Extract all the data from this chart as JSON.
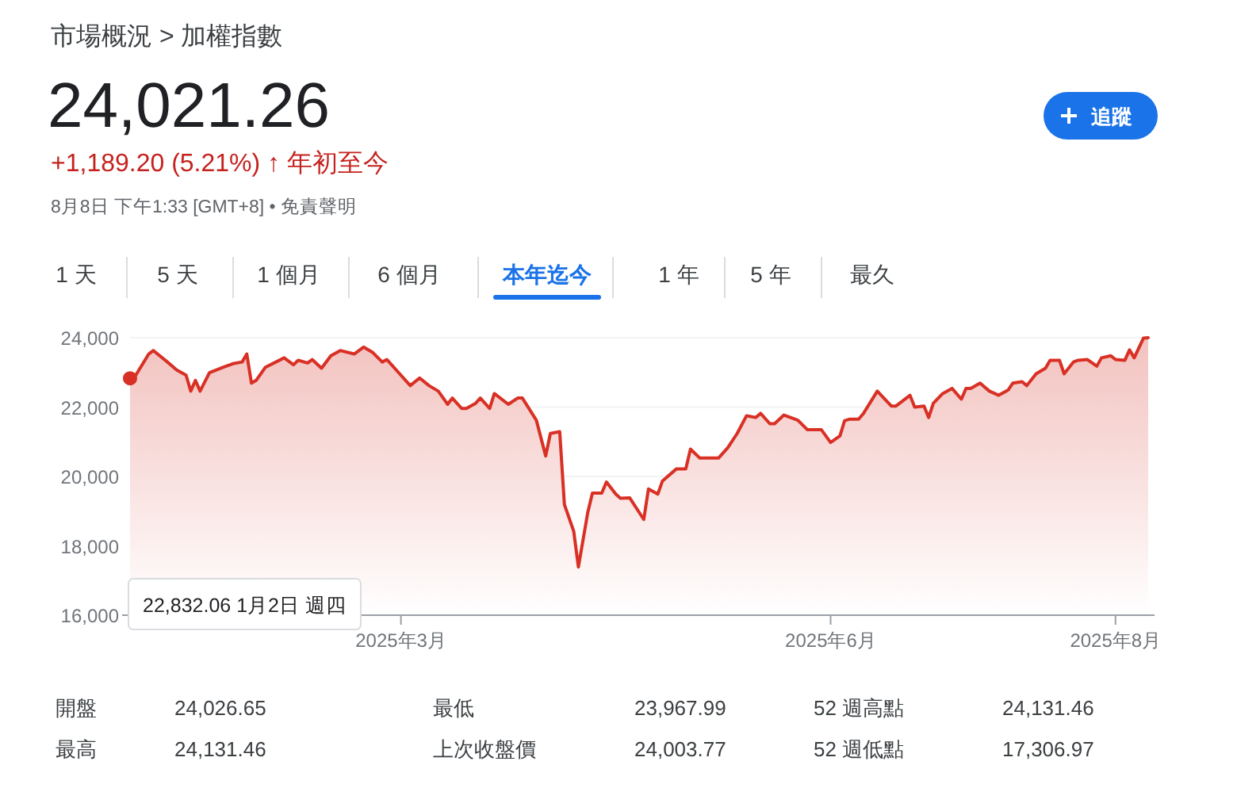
{
  "chart_data": {
    "type": "area",
    "title": "市場概況 > 加權指數",
    "subtitle": "24,021.26",
    "annotations": [
      "+1,189.20 (5.21%) ↑ 年初至今",
      "8月8日 下午1:33 [GMT+8] • 免責聲明",
      "追蹤",
      "1 天",
      "5 天",
      "1 個月",
      "6 個月",
      "本年迄今",
      "1 年",
      "5 年",
      "最久",
      "開盤",
      "24,026.65",
      "最低",
      "23,967.99",
      "52 週高點",
      "24,131.46",
      "最高",
      "24,131.46",
      "上次收盤價",
      "24,003.77",
      "52 週低點",
      "17,306.97",
      "22,832.06 1月2日 週四"
    ],
    "x": [
      "2025-01-02",
      "2025-01-03",
      "2025-01-06",
      "2025-01-07",
      "2025-01-10",
      "2025-01-12",
      "2025-01-14",
      "2025-01-15",
      "2025-01-16",
      "2025-01-17",
      "2025-01-19",
      "2025-01-22",
      "2025-01-24",
      "2025-01-26",
      "2025-01-27",
      "2025-01-28",
      "2025-01-29",
      "2025-01-31",
      "2025-02-04",
      "2025-02-06",
      "2025-02-07",
      "2025-02-09",
      "2025-02-10",
      "2025-02-12",
      "2025-02-14",
      "2025-02-16",
      "2025-02-19",
      "2025-02-21",
      "2025-02-23",
      "2025-02-25",
      "2025-02-26",
      "2025-03-01",
      "2025-03-03",
      "2025-03-05",
      "2025-03-07",
      "2025-03-09",
      "2025-03-11",
      "2025-03-12",
      "2025-03-14",
      "2025-03-15",
      "2025-03-17",
      "2025-03-18",
      "2025-03-20",
      "2025-03-21",
      "2025-03-24",
      "2025-03-26",
      "2025-03-27",
      "2025-03-30",
      "2025-04-01",
      "2025-04-02",
      "2025-04-04",
      "2025-04-05",
      "2025-04-07",
      "2025-04-08",
      "2025-04-10",
      "2025-04-11",
      "2025-04-13",
      "2025-04-14",
      "2025-04-16",
      "2025-04-17",
      "2025-04-19",
      "2025-04-22",
      "2025-04-23",
      "2025-04-25",
      "2025-04-26",
      "2025-04-29",
      "2025-05-01",
      "2025-05-02",
      "2025-05-04",
      "2025-05-08",
      "2025-05-10",
      "2025-05-12",
      "2025-05-14",
      "2025-05-16",
      "2025-05-17",
      "2025-05-19",
      "2025-05-20",
      "2025-05-22",
      "2025-05-24",
      "2025-05-25",
      "2025-05-27",
      "2025-05-30",
      "2025-06-01",
      "2025-06-03",
      "2025-06-04",
      "2025-06-05",
      "2025-06-07",
      "2025-06-08",
      "2025-06-11",
      "2025-06-14",
      "2025-06-15",
      "2025-06-18",
      "2025-06-19",
      "2025-06-21",
      "2025-06-22",
      "2025-06-23",
      "2025-06-25",
      "2025-06-27",
      "2025-06-29",
      "2025-06-30",
      "2025-07-01",
      "2025-07-03",
      "2025-07-05",
      "2025-07-07",
      "2025-07-09",
      "2025-07-10",
      "2025-07-12",
      "2025-07-13",
      "2025-07-15",
      "2025-07-17",
      "2025-07-18",
      "2025-07-20",
      "2025-07-21",
      "2025-07-23",
      "2025-07-24",
      "2025-07-26",
      "2025-07-28",
      "2025-07-29",
      "2025-07-31",
      "2025-08-01",
      "2025-08-03",
      "2025-08-04",
      "2025-08-05",
      "2025-08-07",
      "2025-08-08"
    ],
    "series": [
      {
        "color": "#d93025",
        "values": [
          22830,
          22870,
          23530,
          23630,
          23300,
          23070,
          22920,
          22460,
          22770,
          22460,
          22990,
          23150,
          23250,
          23300,
          23530,
          22690,
          22770,
          23150,
          23420,
          23220,
          23350,
          23270,
          23370,
          23120,
          23480,
          23630,
          23530,
          23730,
          23570,
          23300,
          23370,
          22920,
          22620,
          22840,
          22620,
          22460,
          22080,
          22260,
          21960,
          21960,
          22110,
          22260,
          21960,
          22390,
          22080,
          22260,
          22260,
          21620,
          20590,
          21240,
          21290,
          19190,
          18420,
          17390,
          18960,
          19520,
          19520,
          19840,
          19490,
          19370,
          19380,
          18760,
          19640,
          19490,
          19870,
          20220,
          20220,
          20790,
          20530,
          20530,
          20830,
          21240,
          21750,
          21700,
          21820,
          21520,
          21520,
          21770,
          21670,
          21620,
          21350,
          21350,
          20980,
          21170,
          21610,
          21650,
          21650,
          21810,
          22460,
          22030,
          22030,
          22340,
          22000,
          22030,
          21700,
          22110,
          22390,
          22540,
          22230,
          22540,
          22540,
          22690,
          22460,
          22340,
          22490,
          22690,
          22730,
          22620,
          22960,
          23120,
          23350,
          23350,
          22960,
          23300,
          23350,
          23370,
          23180,
          23420,
          23480,
          23370,
          23350,
          23650,
          23420,
          23990,
          24000
        ]
      }
    ],
    "xlim": [
      "2025-01-02",
      "2025-08-08"
    ],
    "xticks": [
      {
        "value": "2025-03-01",
        "label": "2025年3月"
      },
      {
        "value": "2025-06-01",
        "label": "2025年6月"
      },
      {
        "value": "2025-08-01",
        "label": "2025年8月"
      }
    ],
    "ylim": [
      16000,
      24000
    ],
    "yticks": [
      {
        "value": 16000,
        "label": "16,000"
      },
      {
        "value": 18000,
        "label": "18,000"
      },
      {
        "value": 20000,
        "label": "20,000"
      },
      {
        "value": 22000,
        "label": "22,000"
      },
      {
        "value": 24000,
        "label": "24,000"
      }
    ],
    "grid": "y"
  }
}
